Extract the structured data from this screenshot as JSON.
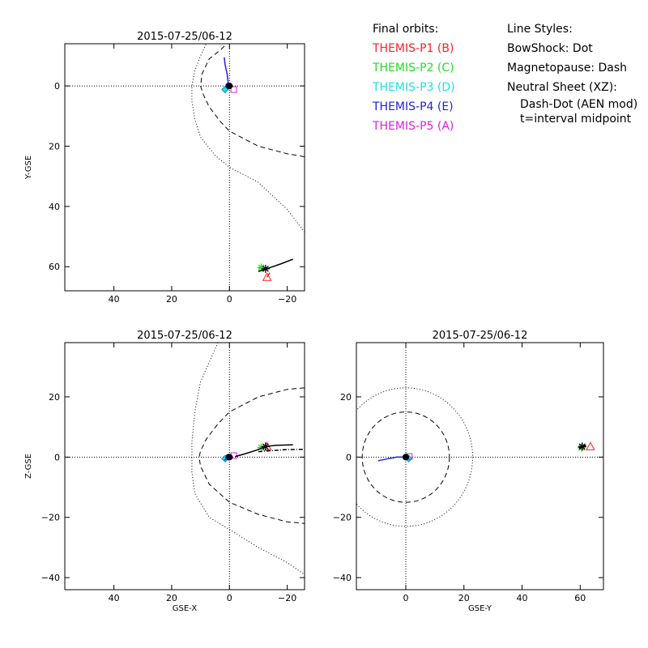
{
  "legend_orbits": {
    "heading": "Final orbits:",
    "items": [
      {
        "label": "THEMIS-P1 (B)",
        "color": "#ff2020"
      },
      {
        "label": "THEMIS-P2 (C)",
        "color": "#20e020"
      },
      {
        "label": "THEMIS-P3 (D)",
        "color": "#20e0e0"
      },
      {
        "label": "THEMIS-P4 (E)",
        "color": "#2020e0"
      },
      {
        "label": "THEMIS-P5 (A)",
        "color": "#e020e0"
      }
    ]
  },
  "legend_styles": {
    "heading": "Line Styles:",
    "bowshock": "BowShock: Dot",
    "magnetopause": "Magnetopause: Dash",
    "neutral_sheet": "Neutral Sheet (XZ):",
    "neutral_sheet_style": "Dash-Dot (AEN mod)",
    "midpoint": "t=interval midpoint"
  },
  "chart_data": [
    {
      "type": "line",
      "title": "2015-07-25/06-12",
      "xlabel": "",
      "ylabel": "Y-GSE",
      "xlim": [
        57,
        -26
      ],
      "ylim": [
        -14,
        68
      ],
      "xticks": [
        40,
        20,
        0,
        -20
      ],
      "xtick_labels": [
        "40",
        "20",
        "0",
        "−20"
      ],
      "yticks": [
        0,
        20,
        40,
        60
      ],
      "ytick_labels": [
        "0",
        "20",
        "40",
        "60"
      ],
      "y_inverted": true,
      "bowshock": [
        [
          -26,
          48.5
        ],
        [
          -20,
          41
        ],
        [
          -10,
          32
        ],
        [
          0,
          27
        ],
        [
          5,
          23
        ],
        [
          10,
          17
        ],
        [
          12,
          11
        ],
        [
          13,
          5
        ],
        [
          13,
          0
        ],
        [
          12,
          -5
        ],
        [
          10,
          -10
        ],
        [
          8,
          -14
        ]
      ],
      "magnetopause": [
        [
          -26,
          23.5
        ],
        [
          -20,
          22.5
        ],
        [
          -10,
          20
        ],
        [
          0,
          15
        ],
        [
          3,
          12
        ],
        [
          7,
          7
        ],
        [
          9,
          3
        ],
        [
          10,
          0
        ],
        [
          9.5,
          -4
        ],
        [
          7,
          -9
        ],
        [
          3,
          -12
        ],
        [
          1,
          -14
        ]
      ],
      "axis_lines": {
        "x": 0,
        "y": 0
      },
      "series": [
        {
          "name": "THEMIS-P1 (B)",
          "color": "#ff2020",
          "marker": "triangle",
          "marker_at": [
            -13,
            63.5
          ],
          "path": [
            [
              -14,
              62
            ],
            [
              -13,
              63.5
            ]
          ]
        },
        {
          "name": "THEMIS-P2 (C)",
          "color": "#20e020",
          "marker": "asterisk",
          "marker_at": [
            -11,
            60.3
          ],
          "path": [
            [
              -10,
              60.5
            ],
            [
              -11,
              60.3
            ]
          ]
        },
        {
          "name": "THEMIS-P3 (D)",
          "color": "#20e0e0",
          "marker": "diamond",
          "marker_at": [
            1.5,
            1.2
          ],
          "path": [
            [
              1.5,
              1.2
            ]
          ]
        },
        {
          "name": "THEMIS-P4 (E)",
          "color": "#2020e0",
          "marker": "circle",
          "marker_at": [
            0.3,
            0
          ],
          "path": [
            [
              1.8,
              -9.5
            ],
            [
              1.5,
              -7
            ],
            [
              0.8,
              -4
            ],
            [
              0.5,
              -1.5
            ],
            [
              0.3,
              0
            ]
          ]
        },
        {
          "name": "THEMIS-P5 (A)",
          "color": "#e020e0",
          "marker": "square",
          "marker_at": [
            -1.5,
            1.2
          ],
          "path": [
            [
              -1.5,
              1.2
            ]
          ]
        },
        {
          "name": "Neutral Sheet",
          "color": "#000000",
          "marker": "asterisk",
          "marker_at": [
            -12.5,
            60.7
          ],
          "path": [
            [
              -10,
              61.6
            ],
            [
              -14,
              60.3
            ],
            [
              -18,
              59
            ],
            [
              -22,
              57.5
            ]
          ]
        },
        {
          "name": "Earth",
          "color": "#000000",
          "marker": "filled-circle",
          "marker_at": [
            0,
            0
          ],
          "path": [
            [
              0,
              0
            ]
          ]
        }
      ]
    },
    {
      "type": "line",
      "title": "2015-07-25/06-12",
      "xlabel": "GSE-X",
      "ylabel": "Z-GSE",
      "xlim": [
        57,
        -26
      ],
      "ylim": [
        -44,
        38
      ],
      "xticks": [
        40,
        20,
        0,
        -20
      ],
      "xtick_labels": [
        "40",
        "20",
        "0",
        "−20"
      ],
      "yticks": [
        20,
        0,
        -20,
        -40
      ],
      "ytick_labels": [
        "20",
        "0",
        "−20",
        "−40"
      ],
      "y_inverted": false,
      "bowshock": [
        [
          4,
          38
        ],
        [
          10,
          25
        ],
        [
          12,
          15
        ],
        [
          13,
          5
        ],
        [
          13,
          0
        ],
        [
          13,
          -5
        ],
        [
          12,
          -12
        ],
        [
          7,
          -20
        ],
        [
          0,
          -24
        ],
        [
          -10,
          -30
        ],
        [
          -20,
          -35
        ],
        [
          -26,
          -39
        ]
      ],
      "magnetopause": [
        [
          -26,
          23
        ],
        [
          -20,
          22.5
        ],
        [
          -10,
          20
        ],
        [
          0,
          15
        ],
        [
          4,
          11
        ],
        [
          8,
          6
        ],
        [
          10,
          2
        ],
        [
          10.5,
          0
        ],
        [
          10,
          -3
        ],
        [
          7,
          -9
        ],
        [
          0,
          -15
        ],
        [
          -10,
          -19
        ],
        [
          -20,
          -21.5
        ],
        [
          -26,
          -22
        ]
      ],
      "axis_lines": {
        "x": 0,
        "y": 0
      },
      "series": [
        {
          "name": "THEMIS-P1 (B)",
          "color": "#ff2020",
          "marker": "triangle",
          "marker_at": [
            -13,
            3.5
          ],
          "path": [
            [
              -13,
              3.5
            ]
          ]
        },
        {
          "name": "THEMIS-P2 (C)",
          "color": "#20e020",
          "marker": "asterisk",
          "marker_at": [
            -11,
            3.2
          ],
          "path": [
            [
              -11,
              3.2
            ]
          ]
        },
        {
          "name": "THEMIS-P3 (D)",
          "color": "#20e0e0",
          "marker": "diamond",
          "marker_at": [
            1.5,
            -0.5
          ],
          "path": [
            [
              1.5,
              -0.5
            ]
          ]
        },
        {
          "name": "THEMIS-P4 (E)",
          "color": "#2020e0",
          "marker": "circle",
          "marker_at": [
            0.3,
            0
          ],
          "path": [
            [
              1.8,
              -1
            ],
            [
              1,
              -0.5
            ],
            [
              0.3,
              0
            ]
          ]
        },
        {
          "name": "THEMIS-P5 (A)",
          "color": "#e020e0",
          "marker": "square",
          "marker_at": [
            -1.5,
            0.5
          ],
          "path": [
            [
              -1.5,
              0.5
            ]
          ]
        },
        {
          "name": "Neutral Sheet",
          "color": "#000000",
          "marker": "asterisk",
          "marker_at": [
            -12.5,
            3.5
          ],
          "path": [
            [
              -2,
              0.2
            ],
            [
              -5,
              1
            ],
            [
              -9,
              2.2
            ],
            [
              -12.5,
              3.5
            ],
            [
              -16,
              3.9
            ],
            [
              -22,
              4.1
            ]
          ]
        },
        {
          "name": "Neutral Sheet (AEN mod)",
          "color": "#000000",
          "marker": "none",
          "marker_at": [
            0,
            0
          ],
          "path": [
            [
              -10,
              1.8
            ],
            [
              -15,
              2.2
            ],
            [
              -20,
              2.5
            ],
            [
              -26,
              2.6
            ]
          ]
        },
        {
          "name": "Earth",
          "color": "#000000",
          "marker": "filled-circle",
          "marker_at": [
            0,
            0
          ],
          "path": [
            [
              0,
              0
            ]
          ]
        }
      ]
    },
    {
      "type": "line",
      "title": "2015-07-25/06-12",
      "xlabel": "GSE-Y",
      "ylabel": "",
      "xlim": [
        -17,
        68
      ],
      "ylim": [
        -44,
        38
      ],
      "xticks": [
        0,
        20,
        40,
        60
      ],
      "xtick_labels": [
        "0",
        "20",
        "40",
        "60"
      ],
      "yticks": [
        20,
        0,
        -20,
        -40
      ],
      "ytick_labels": [
        "20",
        "0",
        "−20",
        "−40"
      ],
      "y_inverted": false,
      "bowshock_circle": {
        "center": [
          0,
          0
        ],
        "radius": 23
      },
      "magnetopause_circle": {
        "center": [
          0,
          0
        ],
        "radius": 15
      },
      "axis_lines": {
        "x": 0,
        "y": 0
      },
      "series": [
        {
          "name": "THEMIS-P1 (B)",
          "color": "#ff2020",
          "marker": "triangle",
          "marker_at": [
            63.5,
            3.5
          ],
          "path": [
            [
              63.5,
              3.5
            ]
          ]
        },
        {
          "name": "THEMIS-P2 (C)",
          "color": "#20e020",
          "marker": "asterisk",
          "marker_at": [
            60.5,
            3.2
          ],
          "path": [
            [
              60.5,
              3.2
            ]
          ]
        },
        {
          "name": "THEMIS-P3 (D)",
          "color": "#20e0e0",
          "marker": "diamond",
          "marker_at": [
            1,
            -0.5
          ],
          "path": [
            [
              1,
              -0.5
            ]
          ]
        },
        {
          "name": "THEMIS-P4 (E)",
          "color": "#2020e0",
          "marker": "circle",
          "marker_at": [
            0,
            0
          ],
          "path": [
            [
              -9.5,
              -1.2
            ],
            [
              -6,
              -0.5
            ],
            [
              -3,
              0
            ],
            [
              0,
              0
            ]
          ]
        },
        {
          "name": "THEMIS-P5 (A)",
          "color": "#e020e0",
          "marker": "square",
          "marker_at": [
            1.2,
            0.2
          ],
          "path": [
            [
              1.2,
              0.2
            ]
          ]
        },
        {
          "name": "Neutral Sheet",
          "color": "#000000",
          "marker": "asterisk",
          "marker_at": [
            60.7,
            3.5
          ],
          "path": [
            [
              59.5,
              3
            ],
            [
              62,
              4
            ]
          ]
        },
        {
          "name": "Earth",
          "color": "#000000",
          "marker": "filled-circle",
          "marker_at": [
            0,
            0
          ],
          "path": [
            [
              0,
              0
            ]
          ]
        }
      ]
    }
  ]
}
